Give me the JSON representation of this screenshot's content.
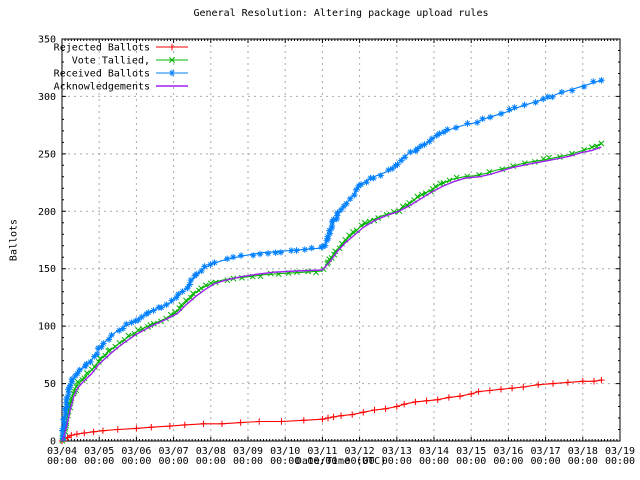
{
  "chart_data": {
    "type": "line",
    "title": "General Resolution: Altering package upload rules",
    "xlabel": "Date/Time (UTC)",
    "ylabel": "Ballots",
    "ylim": [
      0,
      350
    ],
    "y_ticks": [
      0,
      50,
      100,
      150,
      200,
      250,
      300,
      350
    ],
    "y_minor_step": 10,
    "x_minor_step_hours": 2,
    "grid": true,
    "grid_color": "#aaaaaa",
    "background": "#ffffff",
    "legend_position": "top-left",
    "x_range_days": [
      4,
      19
    ],
    "x_ticks": [
      {
        "date": "03/04",
        "time": "00:00"
      },
      {
        "date": "03/05",
        "time": "00:00"
      },
      {
        "date": "03/06",
        "time": "00:00"
      },
      {
        "date": "03/07",
        "time": "00:00"
      },
      {
        "date": "03/08",
        "time": "00:00"
      },
      {
        "date": "03/09",
        "time": "00:00"
      },
      {
        "date": "03/10",
        "time": "00:00"
      },
      {
        "date": "03/11",
        "time": "00:00"
      },
      {
        "date": "03/12",
        "time": "00:00"
      },
      {
        "date": "03/13",
        "time": "00:00"
      },
      {
        "date": "03/14",
        "time": "00:00"
      },
      {
        "date": "03/15",
        "time": "00:00"
      },
      {
        "date": "03/16",
        "time": "00:00"
      },
      {
        "date": "03/17",
        "time": "00:00"
      },
      {
        "date": "03/18",
        "time": "00:00"
      },
      {
        "date": "03/19",
        "time": "00:00"
      }
    ],
    "series": [
      {
        "name": "Rejected Ballots",
        "color": "#ff0000",
        "marker": "plus",
        "points": [
          [
            4.0,
            0
          ],
          [
            4.08,
            2
          ],
          [
            4.15,
            3
          ],
          [
            4.25,
            5
          ],
          [
            4.4,
            6
          ],
          [
            4.6,
            7
          ],
          [
            4.85,
            8
          ],
          [
            5.1,
            9
          ],
          [
            5.5,
            10
          ],
          [
            6.0,
            11
          ],
          [
            6.4,
            12
          ],
          [
            6.9,
            13
          ],
          [
            7.3,
            14
          ],
          [
            7.8,
            15
          ],
          [
            8.3,
            15
          ],
          [
            8.8,
            16
          ],
          [
            9.3,
            17
          ],
          [
            9.9,
            17
          ],
          [
            10.5,
            18
          ],
          [
            11.0,
            19
          ],
          [
            11.15,
            20
          ],
          [
            11.3,
            21
          ],
          [
            11.5,
            22
          ],
          [
            11.8,
            23
          ],
          [
            12.1,
            25
          ],
          [
            12.4,
            27
          ],
          [
            12.7,
            28
          ],
          [
            13.0,
            30
          ],
          [
            13.2,
            32
          ],
          [
            13.5,
            34
          ],
          [
            13.8,
            35
          ],
          [
            14.1,
            36
          ],
          [
            14.4,
            38
          ],
          [
            14.7,
            39
          ],
          [
            15.0,
            41
          ],
          [
            15.2,
            43
          ],
          [
            15.5,
            44
          ],
          [
            15.8,
            45
          ],
          [
            16.1,
            46
          ],
          [
            16.4,
            47
          ],
          [
            16.8,
            49
          ],
          [
            17.2,
            50
          ],
          [
            17.6,
            51
          ],
          [
            18.0,
            52
          ],
          [
            18.3,
            52
          ],
          [
            18.5,
            53
          ]
        ]
      },
      {
        "name": "Vote Tallied,",
        "color": "#00b400",
        "marker": "cross",
        "points": [
          [
            4.0,
            0
          ],
          [
            4.06,
            8
          ],
          [
            4.12,
            18
          ],
          [
            4.2,
            30
          ],
          [
            4.3,
            42
          ],
          [
            4.4,
            49
          ],
          [
            4.55,
            54
          ],
          [
            4.75,
            60
          ],
          [
            5.0,
            70
          ],
          [
            5.25,
            78
          ],
          [
            5.5,
            84
          ],
          [
            5.75,
            90
          ],
          [
            6.0,
            95
          ],
          [
            6.3,
            100
          ],
          [
            6.6,
            104
          ],
          [
            6.9,
            108
          ],
          [
            7.1,
            113
          ],
          [
            7.3,
            120
          ],
          [
            7.5,
            127
          ],
          [
            7.7,
            132
          ],
          [
            8.0,
            137
          ],
          [
            8.3,
            140
          ],
          [
            8.7,
            142
          ],
          [
            9.0,
            143
          ],
          [
            9.5,
            145
          ],
          [
            10.0,
            146
          ],
          [
            10.5,
            147
          ],
          [
            11.0,
            148
          ],
          [
            11.15,
            155
          ],
          [
            11.3,
            163
          ],
          [
            11.5,
            170
          ],
          [
            11.7,
            177
          ],
          [
            12.0,
            186
          ],
          [
            12.3,
            192
          ],
          [
            12.6,
            196
          ],
          [
            13.0,
            200
          ],
          [
            13.3,
            206
          ],
          [
            13.6,
            213
          ],
          [
            13.9,
            218
          ],
          [
            14.2,
            224
          ],
          [
            14.5,
            228
          ],
          [
            14.8,
            230
          ],
          [
            15.1,
            231
          ],
          [
            15.4,
            233
          ],
          [
            15.7,
            236
          ],
          [
            16.0,
            238
          ],
          [
            16.3,
            241
          ],
          [
            16.6,
            243
          ],
          [
            17.0,
            245
          ],
          [
            17.3,
            247
          ],
          [
            17.6,
            249
          ],
          [
            17.9,
            252
          ],
          [
            18.2,
            255
          ],
          [
            18.5,
            259
          ]
        ]
      },
      {
        "name": "Received Ballots",
        "color": "#0080ff",
        "marker": "asterisk",
        "points": [
          [
            4.0,
            0
          ],
          [
            4.05,
            12
          ],
          [
            4.1,
            25
          ],
          [
            4.15,
            38
          ],
          [
            4.2,
            48
          ],
          [
            4.3,
            54
          ],
          [
            4.45,
            60
          ],
          [
            4.6,
            65
          ],
          [
            4.8,
            71
          ],
          [
            5.0,
            80
          ],
          [
            5.2,
            88
          ],
          [
            5.45,
            95
          ],
          [
            5.7,
            100
          ],
          [
            6.0,
            105
          ],
          [
            6.3,
            111
          ],
          [
            6.6,
            116
          ],
          [
            6.9,
            120
          ],
          [
            7.1,
            126
          ],
          [
            7.3,
            132
          ],
          [
            7.45,
            138
          ],
          [
            7.6,
            144
          ],
          [
            7.8,
            150
          ],
          [
            8.0,
            154
          ],
          [
            8.3,
            157
          ],
          [
            8.7,
            160
          ],
          [
            9.0,
            162
          ],
          [
            9.4,
            164
          ],
          [
            9.8,
            165
          ],
          [
            10.2,
            166
          ],
          [
            10.6,
            167
          ],
          [
            11.0,
            168
          ],
          [
            11.1,
            173
          ],
          [
            11.2,
            182
          ],
          [
            11.3,
            191
          ],
          [
            11.45,
            199
          ],
          [
            11.6,
            205
          ],
          [
            11.8,
            213
          ],
          [
            12.0,
            222
          ],
          [
            12.2,
            227
          ],
          [
            12.45,
            231
          ],
          [
            12.7,
            234
          ],
          [
            13.0,
            240
          ],
          [
            13.15,
            246
          ],
          [
            13.3,
            250
          ],
          [
            13.5,
            253
          ],
          [
            13.7,
            257
          ],
          [
            14.0,
            264
          ],
          [
            14.2,
            268
          ],
          [
            14.5,
            272
          ],
          [
            14.8,
            275
          ],
          [
            15.1,
            277
          ],
          [
            15.4,
            281
          ],
          [
            15.7,
            284
          ],
          [
            16.0,
            287
          ],
          [
            16.3,
            291
          ],
          [
            16.6,
            294
          ],
          [
            17.0,
            298
          ],
          [
            17.3,
            302
          ],
          [
            17.6,
            305
          ],
          [
            17.9,
            308
          ],
          [
            18.2,
            311
          ],
          [
            18.5,
            314
          ]
        ]
      },
      {
        "name": "Acknowledgements",
        "color": "#a020f0",
        "marker": "none",
        "points": [
          [
            4.0,
            0
          ],
          [
            4.07,
            6
          ],
          [
            4.14,
            15
          ],
          [
            4.22,
            27
          ],
          [
            4.32,
            39
          ],
          [
            4.42,
            46
          ],
          [
            4.58,
            52
          ],
          [
            4.78,
            58
          ],
          [
            5.0,
            67
          ],
          [
            5.3,
            76
          ],
          [
            5.6,
            84
          ],
          [
            6.0,
            93
          ],
          [
            6.4,
            100
          ],
          [
            6.8,
            106
          ],
          [
            7.1,
            111
          ],
          [
            7.35,
            119
          ],
          [
            7.6,
            126
          ],
          [
            7.85,
            132
          ],
          [
            8.1,
            137
          ],
          [
            8.4,
            140
          ],
          [
            8.8,
            143
          ],
          [
            9.2,
            145
          ],
          [
            9.7,
            147
          ],
          [
            10.3,
            148
          ],
          [
            11.0,
            149
          ],
          [
            11.2,
            156
          ],
          [
            11.4,
            165
          ],
          [
            11.6,
            172
          ],
          [
            11.85,
            179
          ],
          [
            12.1,
            186
          ],
          [
            12.4,
            192
          ],
          [
            12.7,
            196
          ],
          [
            13.05,
            200
          ],
          [
            13.35,
            205
          ],
          [
            13.65,
            211
          ],
          [
            13.95,
            217
          ],
          [
            14.25,
            222
          ],
          [
            14.55,
            226
          ],
          [
            14.85,
            229
          ],
          [
            15.2,
            230
          ],
          [
            15.5,
            232
          ],
          [
            15.8,
            235
          ],
          [
            16.1,
            238
          ],
          [
            16.4,
            240
          ],
          [
            16.7,
            242
          ],
          [
            17.05,
            244
          ],
          [
            17.35,
            246
          ],
          [
            17.65,
            248
          ],
          [
            17.95,
            251
          ],
          [
            18.25,
            253
          ],
          [
            18.5,
            256
          ]
        ]
      }
    ]
  }
}
